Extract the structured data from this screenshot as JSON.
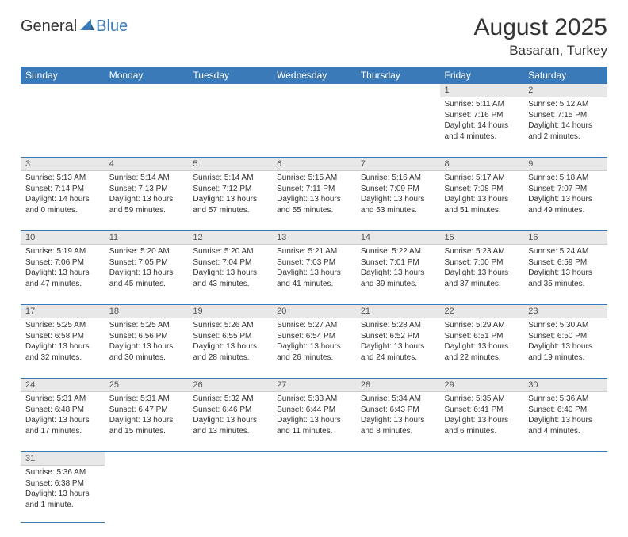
{
  "logo": {
    "part1": "General",
    "part2": "Blue"
  },
  "title": "August 2025",
  "location": "Basaran, Turkey",
  "colors": {
    "header_bg": "#3a7ab8",
    "header_text": "#ffffff",
    "daynum_bg": "#e8e8e8",
    "daynum_text": "#555555",
    "row_divider": "#3a7ab8",
    "body_text": "#333333",
    "logo_blue": "#3a7ab8"
  },
  "fonts": {
    "title_size": 30,
    "location_size": 17,
    "header_size": 12,
    "cell_size": 10,
    "daynum_size": 11
  },
  "columns": [
    "Sunday",
    "Monday",
    "Tuesday",
    "Wednesday",
    "Thursday",
    "Friday",
    "Saturday"
  ],
  "weeks": [
    {
      "nums": [
        "",
        "",
        "",
        "",
        "",
        "1",
        "2"
      ],
      "cells": [
        null,
        null,
        null,
        null,
        null,
        {
          "sunrise": "Sunrise: 5:11 AM",
          "sunset": "Sunset: 7:16 PM",
          "daylight": "Daylight: 14 hours and 4 minutes."
        },
        {
          "sunrise": "Sunrise: 5:12 AM",
          "sunset": "Sunset: 7:15 PM",
          "daylight": "Daylight: 14 hours and 2 minutes."
        }
      ]
    },
    {
      "nums": [
        "3",
        "4",
        "5",
        "6",
        "7",
        "8",
        "9"
      ],
      "cells": [
        {
          "sunrise": "Sunrise: 5:13 AM",
          "sunset": "Sunset: 7:14 PM",
          "daylight": "Daylight: 14 hours and 0 minutes."
        },
        {
          "sunrise": "Sunrise: 5:14 AM",
          "sunset": "Sunset: 7:13 PM",
          "daylight": "Daylight: 13 hours and 59 minutes."
        },
        {
          "sunrise": "Sunrise: 5:14 AM",
          "sunset": "Sunset: 7:12 PM",
          "daylight": "Daylight: 13 hours and 57 minutes."
        },
        {
          "sunrise": "Sunrise: 5:15 AM",
          "sunset": "Sunset: 7:11 PM",
          "daylight": "Daylight: 13 hours and 55 minutes."
        },
        {
          "sunrise": "Sunrise: 5:16 AM",
          "sunset": "Sunset: 7:09 PM",
          "daylight": "Daylight: 13 hours and 53 minutes."
        },
        {
          "sunrise": "Sunrise: 5:17 AM",
          "sunset": "Sunset: 7:08 PM",
          "daylight": "Daylight: 13 hours and 51 minutes."
        },
        {
          "sunrise": "Sunrise: 5:18 AM",
          "sunset": "Sunset: 7:07 PM",
          "daylight": "Daylight: 13 hours and 49 minutes."
        }
      ]
    },
    {
      "nums": [
        "10",
        "11",
        "12",
        "13",
        "14",
        "15",
        "16"
      ],
      "cells": [
        {
          "sunrise": "Sunrise: 5:19 AM",
          "sunset": "Sunset: 7:06 PM",
          "daylight": "Daylight: 13 hours and 47 minutes."
        },
        {
          "sunrise": "Sunrise: 5:20 AM",
          "sunset": "Sunset: 7:05 PM",
          "daylight": "Daylight: 13 hours and 45 minutes."
        },
        {
          "sunrise": "Sunrise: 5:20 AM",
          "sunset": "Sunset: 7:04 PM",
          "daylight": "Daylight: 13 hours and 43 minutes."
        },
        {
          "sunrise": "Sunrise: 5:21 AM",
          "sunset": "Sunset: 7:03 PM",
          "daylight": "Daylight: 13 hours and 41 minutes."
        },
        {
          "sunrise": "Sunrise: 5:22 AM",
          "sunset": "Sunset: 7:01 PM",
          "daylight": "Daylight: 13 hours and 39 minutes."
        },
        {
          "sunrise": "Sunrise: 5:23 AM",
          "sunset": "Sunset: 7:00 PM",
          "daylight": "Daylight: 13 hours and 37 minutes."
        },
        {
          "sunrise": "Sunrise: 5:24 AM",
          "sunset": "Sunset: 6:59 PM",
          "daylight": "Daylight: 13 hours and 35 minutes."
        }
      ]
    },
    {
      "nums": [
        "17",
        "18",
        "19",
        "20",
        "21",
        "22",
        "23"
      ],
      "cells": [
        {
          "sunrise": "Sunrise: 5:25 AM",
          "sunset": "Sunset: 6:58 PM",
          "daylight": "Daylight: 13 hours and 32 minutes."
        },
        {
          "sunrise": "Sunrise: 5:25 AM",
          "sunset": "Sunset: 6:56 PM",
          "daylight": "Daylight: 13 hours and 30 minutes."
        },
        {
          "sunrise": "Sunrise: 5:26 AM",
          "sunset": "Sunset: 6:55 PM",
          "daylight": "Daylight: 13 hours and 28 minutes."
        },
        {
          "sunrise": "Sunrise: 5:27 AM",
          "sunset": "Sunset: 6:54 PM",
          "daylight": "Daylight: 13 hours and 26 minutes."
        },
        {
          "sunrise": "Sunrise: 5:28 AM",
          "sunset": "Sunset: 6:52 PM",
          "daylight": "Daylight: 13 hours and 24 minutes."
        },
        {
          "sunrise": "Sunrise: 5:29 AM",
          "sunset": "Sunset: 6:51 PM",
          "daylight": "Daylight: 13 hours and 22 minutes."
        },
        {
          "sunrise": "Sunrise: 5:30 AM",
          "sunset": "Sunset: 6:50 PM",
          "daylight": "Daylight: 13 hours and 19 minutes."
        }
      ]
    },
    {
      "nums": [
        "24",
        "25",
        "26",
        "27",
        "28",
        "29",
        "30"
      ],
      "cells": [
        {
          "sunrise": "Sunrise: 5:31 AM",
          "sunset": "Sunset: 6:48 PM",
          "daylight": "Daylight: 13 hours and 17 minutes."
        },
        {
          "sunrise": "Sunrise: 5:31 AM",
          "sunset": "Sunset: 6:47 PM",
          "daylight": "Daylight: 13 hours and 15 minutes."
        },
        {
          "sunrise": "Sunrise: 5:32 AM",
          "sunset": "Sunset: 6:46 PM",
          "daylight": "Daylight: 13 hours and 13 minutes."
        },
        {
          "sunrise": "Sunrise: 5:33 AM",
          "sunset": "Sunset: 6:44 PM",
          "daylight": "Daylight: 13 hours and 11 minutes."
        },
        {
          "sunrise": "Sunrise: 5:34 AM",
          "sunset": "Sunset: 6:43 PM",
          "daylight": "Daylight: 13 hours and 8 minutes."
        },
        {
          "sunrise": "Sunrise: 5:35 AM",
          "sunset": "Sunset: 6:41 PM",
          "daylight": "Daylight: 13 hours and 6 minutes."
        },
        {
          "sunrise": "Sunrise: 5:36 AM",
          "sunset": "Sunset: 6:40 PM",
          "daylight": "Daylight: 13 hours and 4 minutes."
        }
      ]
    },
    {
      "nums": [
        "31",
        "",
        "",
        "",
        "",
        "",
        ""
      ],
      "cells": [
        {
          "sunrise": "Sunrise: 5:36 AM",
          "sunset": "Sunset: 6:38 PM",
          "daylight": "Daylight: 13 hours and 1 minute."
        },
        null,
        null,
        null,
        null,
        null,
        null
      ]
    }
  ]
}
